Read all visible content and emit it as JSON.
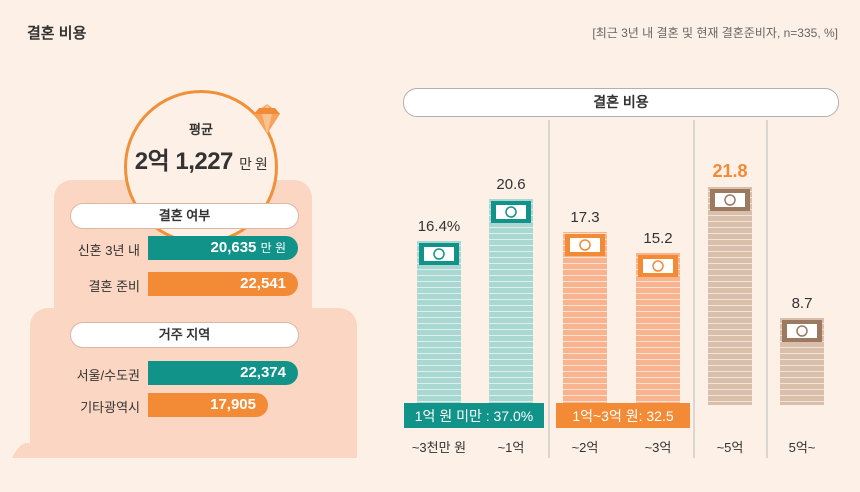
{
  "header": {
    "title": "결혼 비용",
    "source": "[최근 3년 내 결혼 및 현재 결혼준비자, n=335, %]"
  },
  "average": {
    "label": "평균",
    "value": "2억 1,227",
    "unit": "만 원"
  },
  "marital_status": {
    "title": "결혼 여부",
    "rows": [
      {
        "label": "신혼 3년 내",
        "value": "20,635",
        "unit": "만 원"
      },
      {
        "label": "결혼 준비",
        "value": "22,541",
        "unit": ""
      }
    ]
  },
  "region": {
    "title": "거주 지역",
    "rows": [
      {
        "label": "서울/수도권",
        "value": "22,374"
      },
      {
        "label": "기타광역시",
        "value": "17,905"
      }
    ]
  },
  "chart_data": {
    "type": "bar",
    "title": "결혼 비용",
    "categories": [
      "~3천만 원",
      "~1억",
      "~2억",
      "~3억",
      "~5억",
      "5억~"
    ],
    "values": [
      16.4,
      20.6,
      17.3,
      15.2,
      21.8,
      8.7
    ],
    "value_labels": [
      "16.4%",
      "20.6",
      "17.3",
      "15.2",
      "21.8",
      "8.7"
    ],
    "colors": [
      "#a9d8d3",
      "#a9d8d3",
      "#f7b48f",
      "#f7b48f",
      "#d9bfa9",
      "#d9bfa9"
    ],
    "highlight_index": 4,
    "groups": [
      {
        "label": "1억 원 미만 : 37.0%",
        "color": "#11938a"
      },
      {
        "label": "1억~3억 원: 32.5",
        "color": "#f38a35"
      }
    ]
  }
}
